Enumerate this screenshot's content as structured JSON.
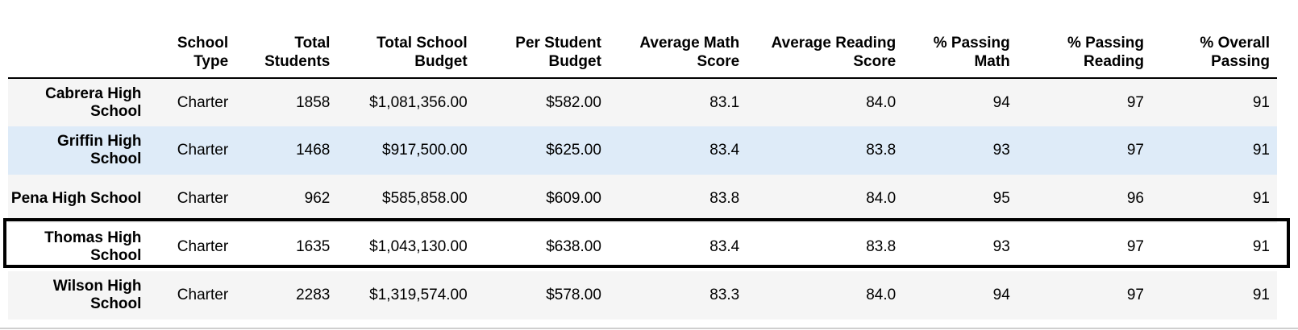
{
  "columns": [
    "",
    "School Type",
    "Total Students",
    "Total School Budget",
    "Per Student Budget",
    "Average Math Score",
    "Average Reading Score",
    "% Passing Math",
    "% Passing Reading",
    "% Overall Passing"
  ],
  "rows": [
    {
      "name": "Cabrera High School",
      "type": "Charter",
      "students": "1858",
      "budget": "$1,081,356.00",
      "per_student": "$582.00",
      "avg_math": "83.1",
      "avg_reading": "84.0",
      "pct_math": "94",
      "pct_reading": "97",
      "pct_overall": "91"
    },
    {
      "name": "Griffin High School",
      "type": "Charter",
      "students": "1468",
      "budget": "$917,500.00",
      "per_student": "$625.00",
      "avg_math": "83.4",
      "avg_reading": "83.8",
      "pct_math": "93",
      "pct_reading": "97",
      "pct_overall": "91"
    },
    {
      "name": "Pena High School",
      "type": "Charter",
      "students": "962",
      "budget": "$585,858.00",
      "per_student": "$609.00",
      "avg_math": "83.8",
      "avg_reading": "84.0",
      "pct_math": "95",
      "pct_reading": "96",
      "pct_overall": "91"
    },
    {
      "name": "Thomas High School",
      "type": "Charter",
      "students": "1635",
      "budget": "$1,043,130.00",
      "per_student": "$638.00",
      "avg_math": "83.4",
      "avg_reading": "83.8",
      "pct_math": "93",
      "pct_reading": "97",
      "pct_overall": "91"
    },
    {
      "name": "Wilson High School",
      "type": "Charter",
      "students": "2283",
      "budget": "$1,319,574.00",
      "per_student": "$578.00",
      "avg_math": "83.3",
      "avg_reading": "84.0",
      "pct_math": "94",
      "pct_reading": "97",
      "pct_overall": "91"
    }
  ],
  "colors": {
    "row_odd": "#f5f5f5",
    "row_even": "#ffffff",
    "row_hover": "#deebf8",
    "highlight_border": "#000000"
  },
  "state": {
    "hovered_row": "Griffin High School",
    "highlighted_row": "Thomas High School"
  }
}
